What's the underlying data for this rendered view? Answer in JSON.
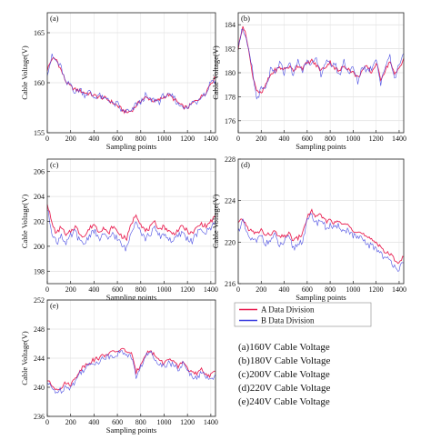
{
  "chart_data": [
    {
      "type": "line",
      "tag": "(a)",
      "xlabel": "Sampling points",
      "ylabel": "Cable Voltage(V)",
      "xlim": [
        0,
        1440
      ],
      "ylim": [
        155,
        167
      ],
      "xticks": [
        0,
        200,
        400,
        600,
        800,
        1000,
        1200,
        1400
      ],
      "yticks": [
        155,
        160,
        165
      ],
      "grid": true,
      "x": [
        0,
        40,
        80,
        120,
        160,
        200,
        240,
        280,
        320,
        360,
        400,
        440,
        480,
        520,
        560,
        600,
        640,
        680,
        720,
        760,
        800,
        840,
        880,
        920,
        960,
        1000,
        1040,
        1080,
        1120,
        1160,
        1200,
        1240,
        1280,
        1320,
        1360,
        1400,
        1440
      ],
      "series": [
        {
          "name": "A Data Division",
          "color": "#e8174b",
          "values": [
            161.3,
            162.4,
            162.3,
            161.2,
            160.1,
            159.6,
            159.3,
            159.2,
            159.0,
            158.9,
            158.7,
            158.6,
            158.5,
            158.3,
            158.0,
            157.7,
            157.3,
            157.0,
            157.2,
            157.7,
            158.2,
            158.5,
            158.4,
            158.1,
            158.3,
            158.6,
            158.8,
            158.4,
            158.0,
            157.6,
            157.5,
            157.9,
            158.3,
            158.6,
            159.1,
            160.0,
            160.5
          ]
        },
        {
          "name": "B Data Division",
          "color": "#3a3de0",
          "values": [
            161.0,
            162.6,
            162.1,
            161.5,
            159.8,
            159.9,
            159.0,
            159.4,
            158.8,
            159.1,
            158.5,
            158.8,
            158.3,
            158.5,
            157.8,
            157.9,
            157.1,
            157.2,
            157.0,
            157.9,
            158.0,
            158.7,
            158.2,
            158.3,
            158.1,
            158.8,
            158.6,
            158.6,
            157.8,
            157.8,
            157.3,
            158.1,
            158.1,
            158.8,
            158.9,
            160.2,
            160.3
          ]
        }
      ]
    },
    {
      "type": "line",
      "tag": "(b)",
      "xlabel": "Sampling points",
      "ylabel": "Cable Voltage(V)",
      "xlim": [
        0,
        1440
      ],
      "ylim": [
        175,
        185
      ],
      "xticks": [
        0,
        200,
        400,
        600,
        800,
        1000,
        1200,
        1400
      ],
      "yticks": [
        176,
        178,
        180,
        182,
        184
      ],
      "grid": true,
      "x": [
        0,
        40,
        80,
        120,
        160,
        200,
        240,
        280,
        320,
        360,
        400,
        440,
        480,
        520,
        560,
        600,
        640,
        680,
        720,
        760,
        800,
        840,
        880,
        920,
        960,
        1000,
        1040,
        1080,
        1120,
        1160,
        1200,
        1240,
        1280,
        1320,
        1360,
        1400,
        1440
      ],
      "series": [
        {
          "name": "A Data Division",
          "color": "#e8174b",
          "values": [
            182.0,
            184.0,
            182.6,
            180.0,
            178.6,
            178.2,
            179.0,
            179.8,
            180.2,
            180.4,
            180.3,
            180.5,
            180.2,
            180.6,
            180.4,
            180.8,
            181.0,
            180.6,
            180.2,
            180.5,
            180.9,
            180.4,
            180.1,
            180.6,
            180.3,
            180.0,
            179.6,
            180.2,
            180.5,
            180.0,
            180.8,
            179.5,
            180.2,
            181.0,
            179.8,
            180.4,
            181.2
          ]
        },
        {
          "name": "B Data Division",
          "color": "#3a3de0",
          "values": [
            182.4,
            183.8,
            182.2,
            180.4,
            177.8,
            178.6,
            178.6,
            180.2,
            179.9,
            180.8,
            180.0,
            180.9,
            179.8,
            181.0,
            180.1,
            181.2,
            180.7,
            181.0,
            179.9,
            180.9,
            180.6,
            180.8,
            179.7,
            181.0,
            180.0,
            180.4,
            179.2,
            180.6,
            180.2,
            180.4,
            181.3,
            179.0,
            180.6,
            181.5,
            179.4,
            180.8,
            181.6
          ]
        }
      ]
    },
    {
      "type": "line",
      "tag": "(c)",
      "xlabel": "Sampling points",
      "ylabel": "Cable Voltage(V)",
      "xlim": [
        0,
        1440
      ],
      "ylim": [
        197,
        207
      ],
      "xticks": [
        0,
        200,
        400,
        600,
        800,
        1000,
        1200,
        1400
      ],
      "yticks": [
        198,
        200,
        202,
        204,
        206
      ],
      "grid": true,
      "x": [
        0,
        40,
        80,
        120,
        160,
        200,
        240,
        280,
        320,
        360,
        400,
        440,
        480,
        520,
        560,
        600,
        640,
        680,
        720,
        760,
        800,
        840,
        880,
        920,
        960,
        1000,
        1040,
        1080,
        1120,
        1160,
        1200,
        1240,
        1280,
        1320,
        1360,
        1400,
        1440
      ],
      "series": [
        {
          "name": "A Data Division",
          "color": "#e8174b",
          "values": [
            203.5,
            201.8,
            201.0,
            201.6,
            200.8,
            201.2,
            201.6,
            201.0,
            200.8,
            201.4,
            201.8,
            201.2,
            201.5,
            201.0,
            201.6,
            201.2,
            200.8,
            200.6,
            201.8,
            202.6,
            201.8,
            201.2,
            201.5,
            201.9,
            201.4,
            201.6,
            201.2,
            201.0,
            201.3,
            201.6,
            201.2,
            201.0,
            201.5,
            201.8,
            201.6,
            202.0,
            202.4
          ]
        },
        {
          "name": "B Data Division",
          "color": "#3a3de0",
          "values": [
            203.0,
            201.2,
            200.2,
            201.0,
            200.1,
            200.8,
            201.2,
            200.3,
            200.2,
            200.9,
            201.3,
            200.5,
            201.0,
            200.4,
            201.1,
            200.6,
            200.0,
            199.8,
            201.2,
            202.2,
            201.2,
            200.6,
            201.0,
            201.4,
            200.8,
            201.0,
            200.6,
            200.4,
            200.8,
            201.1,
            200.6,
            200.4,
            201.0,
            201.3,
            201.1,
            201.5,
            202.0
          ]
        }
      ]
    },
    {
      "type": "line",
      "tag": "(d)",
      "xlabel": "Sampling points",
      "ylabel": "Cable Voltage(V)",
      "xlim": [
        0,
        1440
      ],
      "ylim": [
        216,
        228
      ],
      "xticks": [
        0,
        200,
        400,
        600,
        800,
        1000,
        1200,
        1400
      ],
      "yticks": [
        216,
        220,
        224,
        228
      ],
      "grid": true,
      "x": [
        0,
        40,
        80,
        120,
        160,
        200,
        240,
        280,
        320,
        360,
        400,
        440,
        480,
        520,
        560,
        600,
        640,
        680,
        720,
        760,
        800,
        840,
        880,
        920,
        960,
        1000,
        1040,
        1080,
        1120,
        1160,
        1200,
        1240,
        1280,
        1320,
        1360,
        1400,
        1440
      ],
      "series": [
        {
          "name": "A Data Division",
          "color": "#e8174b",
          "values": [
            221.8,
            222.2,
            221.4,
            221.0,
            220.8,
            221.2,
            220.6,
            220.8,
            221.0,
            220.4,
            220.6,
            220.8,
            220.2,
            220.4,
            220.8,
            222.4,
            223.0,
            222.4,
            222.6,
            222.0,
            222.2,
            221.8,
            222.0,
            221.6,
            221.8,
            221.2,
            221.0,
            220.8,
            220.4,
            220.2,
            220.0,
            219.6,
            219.0,
            218.8,
            218.4,
            218.0,
            218.6
          ]
        },
        {
          "name": "B Data Division",
          "color": "#3a3de0",
          "values": [
            221.2,
            222.0,
            220.6,
            220.2,
            220.0,
            220.8,
            219.8,
            220.2,
            220.6,
            219.6,
            220.0,
            220.4,
            219.4,
            219.8,
            220.2,
            222.0,
            222.6,
            221.8,
            222.2,
            221.4,
            221.6,
            221.2,
            221.6,
            221.0,
            221.2,
            220.6,
            220.4,
            220.2,
            219.8,
            219.6,
            219.4,
            219.0,
            218.4,
            218.2,
            217.8,
            217.4,
            218.0
          ]
        }
      ]
    },
    {
      "type": "line",
      "tag": "(e)",
      "xlabel": "Sampling points",
      "ylabel": "Cable Voltage(V)",
      "xlim": [
        0,
        1440
      ],
      "ylim": [
        236,
        252
      ],
      "xticks": [
        0,
        200,
        400,
        600,
        800,
        1000,
        1200,
        1400
      ],
      "yticks": [
        236,
        240,
        244,
        248,
        252
      ],
      "grid": true,
      "x": [
        0,
        40,
        80,
        120,
        160,
        200,
        240,
        280,
        320,
        360,
        400,
        440,
        480,
        520,
        560,
        600,
        640,
        680,
        720,
        760,
        800,
        840,
        880,
        920,
        960,
        1000,
        1040,
        1080,
        1120,
        1160,
        1200,
        1240,
        1280,
        1320,
        1360,
        1400,
        1440
      ],
      "series": [
        {
          "name": "A Data Division",
          "color": "#e8174b",
          "values": [
            241.0,
            240.2,
            239.8,
            240.0,
            240.6,
            240.4,
            241.2,
            242.4,
            243.0,
            243.4,
            243.8,
            244.0,
            244.4,
            244.6,
            244.8,
            245.0,
            245.2,
            245.0,
            244.6,
            242.0,
            243.2,
            244.6,
            245.0,
            244.4,
            243.8,
            243.2,
            244.0,
            243.4,
            242.8,
            243.6,
            242.6,
            242.0,
            241.8,
            242.4,
            241.8,
            241.6,
            242.2
          ]
        },
        {
          "name": "B Data Division",
          "color": "#3a3de0",
          "values": [
            240.6,
            239.8,
            239.4,
            239.6,
            240.2,
            240.0,
            240.8,
            242.0,
            242.6,
            243.0,
            243.4,
            243.6,
            244.0,
            244.2,
            244.4,
            244.6,
            244.8,
            244.6,
            244.2,
            241.4,
            242.8,
            244.2,
            244.8,
            244.0,
            243.4,
            242.8,
            243.6,
            243.0,
            242.4,
            243.2,
            242.2,
            241.6,
            241.4,
            242.0,
            241.4,
            241.2,
            241.8
          ]
        }
      ]
    }
  ],
  "legend": {
    "entries": [
      {
        "label": "A Data Division",
        "color": "#e8174b"
      },
      {
        "label": "B Data Division",
        "color": "#3a3de0"
      }
    ]
  },
  "caption": {
    "lines": [
      "(a)160V Cable Voltage",
      "(b)180V Cable Voltage",
      "(c)200V Cable Voltage",
      "(d)220V Cable Voltage",
      "(e)240V Cable Voltage"
    ]
  }
}
